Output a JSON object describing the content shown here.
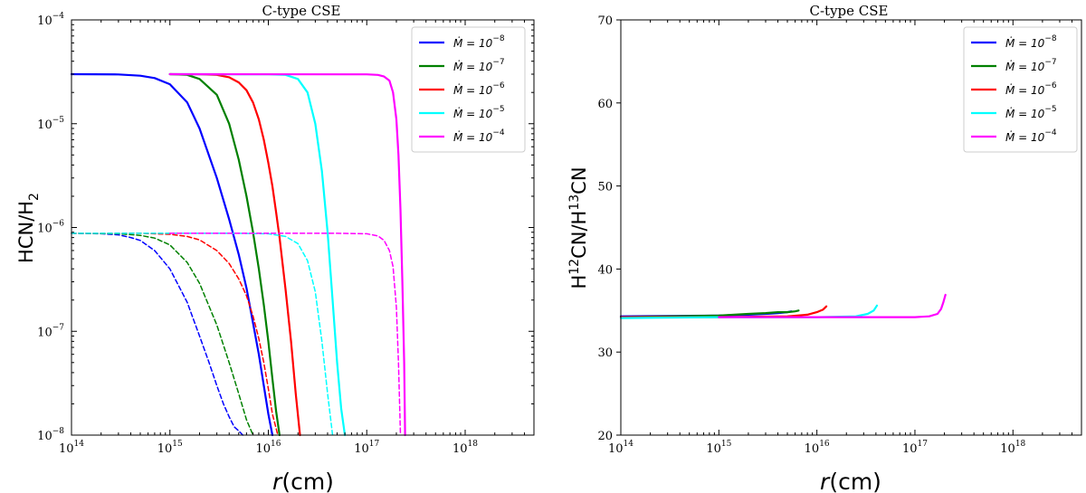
{
  "chart_data": [
    {
      "type": "line",
      "title": "C-type CSE",
      "xlabel": "r(cm)",
      "ylabel": "HCN/H2",
      "xscale": "log",
      "yscale": "log",
      "xlim": [
        100000000000000.0,
        5e+18
      ],
      "ylim": [
        1e-08,
        0.0001
      ],
      "grid": false,
      "legend_position": "top-right",
      "xticks": [
        {
          "base": "10",
          "exp": "14"
        },
        {
          "base": "10",
          "exp": "15"
        },
        {
          "base": "10",
          "exp": "16"
        },
        {
          "base": "10",
          "exp": "17"
        },
        {
          "base": "10",
          "exp": "18"
        }
      ],
      "yticks": [
        {
          "base": "10",
          "exp": "−8"
        },
        {
          "base": "10",
          "exp": "−7"
        },
        {
          "base": "10",
          "exp": "−6"
        },
        {
          "base": "10",
          "exp": "−5"
        },
        {
          "base": "10",
          "exp": "−4"
        }
      ],
      "series": [
        {
          "name": "Ṁ = 10^-8 (solid)",
          "color": "#0000ff",
          "style": "solid",
          "x": [
            100000000000000.0,
            300000000000000.0,
            500000000000000.0,
            700000000000000.0,
            1000000000000000.0,
            1500000000000000.0,
            2000000000000000.0,
            3000000000000000.0,
            4000000000000000.0,
            5000000000000000.0,
            6000000000000000.0,
            7000000000000000.0,
            8000000000000000.0,
            9000000000000000.0,
            1e+16,
            1.1e+16
          ],
          "y": [
            3e-05,
            2.98e-05,
            2.9e-05,
            2.75e-05,
            2.4e-05,
            1.6e-05,
            9e-06,
            3e-06,
            1.2e-06,
            5.5e-07,
            2.6e-07,
            1.2e-07,
            6e-08,
            3e-08,
            1.6e-08,
            1e-08
          ]
        },
        {
          "name": "Ṁ = 10^-7 (solid)",
          "color": "#008000",
          "style": "solid",
          "x": [
            1000000000000000.0,
            1500000000000000.0,
            2000000000000000.0,
            3000000000000000.0,
            4000000000000000.0,
            5000000000000000.0,
            6000000000000000.0,
            7000000000000000.0,
            8000000000000000.0,
            9000000000000000.0,
            1e+16,
            1.1e+16,
            1.2e+16,
            1.3e+16
          ],
          "y": [
            3e-05,
            2.95e-05,
            2.7e-05,
            1.9e-05,
            1e-05,
            4.5e-06,
            2e-06,
            9e-07,
            4e-07,
            1.8e-07,
            8e-08,
            3.5e-08,
            1.7e-08,
            1e-08
          ]
        },
        {
          "name": "Ṁ = 10^-6 (solid)",
          "color": "#ff0000",
          "style": "solid",
          "x": [
            1000000000000000.0,
            2000000000000000.0,
            3000000000000000.0,
            4000000000000000.0,
            5000000000000000.0,
            6000000000000000.0,
            7000000000000000.0,
            8000000000000000.0,
            9000000000000000.0,
            1e+16,
            1.1e+16,
            1.2e+16,
            1.3e+16,
            1.5e+16,
            1.7e+16,
            1.9e+16,
            2.1e+16
          ],
          "y": [
            3e-05,
            2.99e-05,
            2.95e-05,
            2.8e-05,
            2.5e-05,
            2.1e-05,
            1.6e-05,
            1.1e-05,
            7e-06,
            4.2e-06,
            2.5e-06,
            1.4e-06,
            8e-07,
            2.5e-07,
            8e-08,
            2.5e-08,
            1e-08
          ]
        },
        {
          "name": "Ṁ = 10^-5 (solid)",
          "color": "#00ffff",
          "style": "solid",
          "x": [
            1000000000000000.0,
            1e+16,
            1.5e+16,
            2e+16,
            2.5e+16,
            3e+16,
            3.5e+16,
            4e+16,
            4.5e+16,
            5e+16,
            5.5e+16,
            6e+16
          ],
          "y": [
            3e-05,
            2.99e-05,
            2.95e-05,
            2.7e-05,
            2e-05,
            1e-05,
            3.5e-06,
            9e-07,
            2e-07,
            5e-08,
            1.8e-08,
            1e-08
          ]
        },
        {
          "name": "Ṁ = 10^-4 (solid)",
          "color": "#ff00ff",
          "style": "solid",
          "x": [
            1000000000000000.0,
            1e+17,
            1.3e+17,
            1.5e+17,
            1.7e+17,
            1.85e+17,
            2e+17,
            2.1e+17,
            2.2e+17,
            2.3e+17,
            2.4e+17,
            2.45e+17
          ],
          "y": [
            3e-05,
            2.99e-05,
            2.95e-05,
            2.85e-05,
            2.6e-05,
            2e-05,
            1.1e-05,
            5e-06,
            1.5e-06,
            3e-07,
            5e-08,
            1e-08
          ]
        },
        {
          "name": "Ṁ = 10^-8 (dashed)",
          "color": "#0000ff",
          "style": "dashed",
          "x": [
            100000000000000.0,
            200000000000000.0,
            300000000000000.0,
            400000000000000.0,
            500000000000000.0,
            700000000000000.0,
            1000000000000000.0,
            1500000000000000.0,
            2000000000000000.0,
            2500000000000000.0,
            3000000000000000.0,
            3500000000000000.0,
            4000000000000000.0,
            4500000000000000.0,
            5000000000000000.0,
            5500000000000000.0
          ],
          "y": [
            8.8e-07,
            8.7e-07,
            8.5e-07,
            8e-07,
            7.5e-07,
            6e-07,
            4e-07,
            1.9e-07,
            9e-08,
            5e-08,
            3e-08,
            2e-08,
            1.5e-08,
            1.2e-08,
            1.1e-08,
            1e-08
          ]
        },
        {
          "name": "Ṁ = 10^-7 (dashed)",
          "color": "#008000",
          "style": "dashed",
          "x": [
            100000000000000.0,
            300000000000000.0,
            500000000000000.0,
            700000000000000.0,
            1000000000000000.0,
            1500000000000000.0,
            2000000000000000.0,
            3000000000000000.0,
            4000000000000000.0,
            5000000000000000.0,
            6000000000000000.0,
            7000000000000000.0
          ],
          "y": [
            8.8e-07,
            8.7e-07,
            8.4e-07,
            7.9e-07,
            6.8e-07,
            4.6e-07,
            2.9e-07,
            1.15e-07,
            5e-08,
            2.5e-08,
            1.4e-08,
            1e-08
          ]
        },
        {
          "name": "Ṁ = 10^-6 (dashed)",
          "color": "#ff0000",
          "style": "dashed",
          "x": [
            100000000000000.0,
            500000000000000.0,
            1000000000000000.0,
            1500000000000000.0,
            2000000000000000.0,
            3000000000000000.0,
            4000000000000000.0,
            5000000000000000.0,
            6000000000000000.0,
            7000000000000000.0,
            8000000000000000.0,
            9000000000000000.0,
            1e+16,
            1.1e+16,
            1.25e+16
          ],
          "y": [
            8.8e-07,
            8.8e-07,
            8.6e-07,
            8.2e-07,
            7.6e-07,
            6e-07,
            4.5e-07,
            3.2e-07,
            2.2e-07,
            1.4e-07,
            8.5e-08,
            5e-08,
            2.8e-08,
            1.6e-08,
            1e-08
          ]
        },
        {
          "name": "Ṁ = 10^-5 (dashed)",
          "color": "#00ffff",
          "style": "dashed",
          "x": [
            100000000000000.0,
            5000000000000000.0,
            1e+16,
            1.5e+16,
            2e+16,
            2.5e+16,
            3e+16,
            3.5e+16,
            4e+16,
            4.5e+16
          ],
          "y": [
            8.8e-07,
            8.8e-07,
            8.7e-07,
            8.2e-07,
            7e-07,
            4.8e-07,
            2.4e-07,
            8e-08,
            2.5e-08,
            1e-08
          ]
        },
        {
          "name": "Ṁ = 10^-4 (dashed)",
          "color": "#ff00ff",
          "style": "dashed",
          "x": [
            1000000000000000.0,
            5e+16,
            1e+17,
            1.3e+17,
            1.5e+17,
            1.7e+17,
            1.85e+17,
            2e+17,
            2.1e+17,
            2.2e+17
          ],
          "y": [
            8.8e-07,
            8.8e-07,
            8.7e-07,
            8.3e-07,
            7.5e-07,
            6e-07,
            4.2e-07,
            1.7e-07,
            5e-08,
            1e-08
          ]
        }
      ]
    },
    {
      "type": "line",
      "title": "C-type CSE",
      "xlabel": "r(cm)",
      "ylabel": "H12CN/H13CN",
      "xscale": "log",
      "yscale": "linear",
      "xlim": [
        100000000000000.0,
        5e+18
      ],
      "ylim": [
        20,
        70
      ],
      "grid": false,
      "legend_position": "top-right",
      "xticks": [
        {
          "base": "10",
          "exp": "14"
        },
        {
          "base": "10",
          "exp": "15"
        },
        {
          "base": "10",
          "exp": "16"
        },
        {
          "base": "10",
          "exp": "17"
        },
        {
          "base": "10",
          "exp": "18"
        }
      ],
      "yticks": [
        20,
        30,
        40,
        50,
        60,
        70
      ],
      "series": [
        {
          "name": "Ṁ = 10^-8",
          "color": "#0000ff",
          "style": "solid",
          "x": [
            100000000000000.0,
            1000000000000000.0,
            2000000000000000.0,
            3000000000000000.0,
            4000000000000000.0,
            5000000000000000.0,
            5500000000000000.0
          ],
          "y": [
            34.3,
            34.4,
            34.5,
            34.6,
            34.7,
            34.8,
            34.9
          ]
        },
        {
          "name": "Ṁ = 10^-7",
          "color": "#008000",
          "style": "solid",
          "x": [
            100000000000000.0,
            1000000000000000.0,
            2000000000000000.0,
            3000000000000000.0,
            4000000000000000.0,
            5000000000000000.0,
            6000000000000000.0,
            6500000000000000.0
          ],
          "y": [
            34.2,
            34.4,
            34.6,
            34.7,
            34.8,
            34.8,
            34.9,
            35.0
          ]
        },
        {
          "name": "Ṁ = 10^-6",
          "color": "#ff0000",
          "style": "solid",
          "x": [
            100000000000000.0,
            1000000000000000.0,
            5000000000000000.0,
            8000000000000000.0,
            1e+16,
            1.15e+16,
            1.25e+16
          ],
          "y": [
            34.2,
            34.2,
            34.3,
            34.5,
            34.8,
            35.1,
            35.5
          ]
        },
        {
          "name": "Ṁ = 10^-5",
          "color": "#00ffff",
          "style": "solid",
          "x": [
            100000000000000.0,
            1000000000000000.0,
            1e+16,
            2.5e+16,
            3.3e+16,
            3.8e+16,
            4.1e+16
          ],
          "y": [
            34.1,
            34.2,
            34.2,
            34.3,
            34.6,
            35.0,
            35.6
          ]
        },
        {
          "name": "Ṁ = 10^-4",
          "color": "#ff00ff",
          "style": "solid",
          "x": [
            1000000000000000.0,
            1e+16,
            1e+17,
            1.4e+17,
            1.7e+17,
            1.85e+17,
            1.95e+17,
            2.05e+17
          ],
          "y": [
            34.2,
            34.2,
            34.2,
            34.3,
            34.6,
            35.2,
            36.0,
            36.9
          ]
        }
      ]
    }
  ],
  "legend": [
    {
      "label": "Ṁ = 10",
      "exp": "−8",
      "color": "#0000ff"
    },
    {
      "label": "Ṁ = 10",
      "exp": "−7",
      "color": "#008000"
    },
    {
      "label": "Ṁ = 10",
      "exp": "−6",
      "color": "#ff0000"
    },
    {
      "label": "Ṁ = 10",
      "exp": "−5",
      "color": "#00ffff"
    },
    {
      "label": "Ṁ = 10",
      "exp": "−4",
      "color": "#ff00ff"
    }
  ]
}
